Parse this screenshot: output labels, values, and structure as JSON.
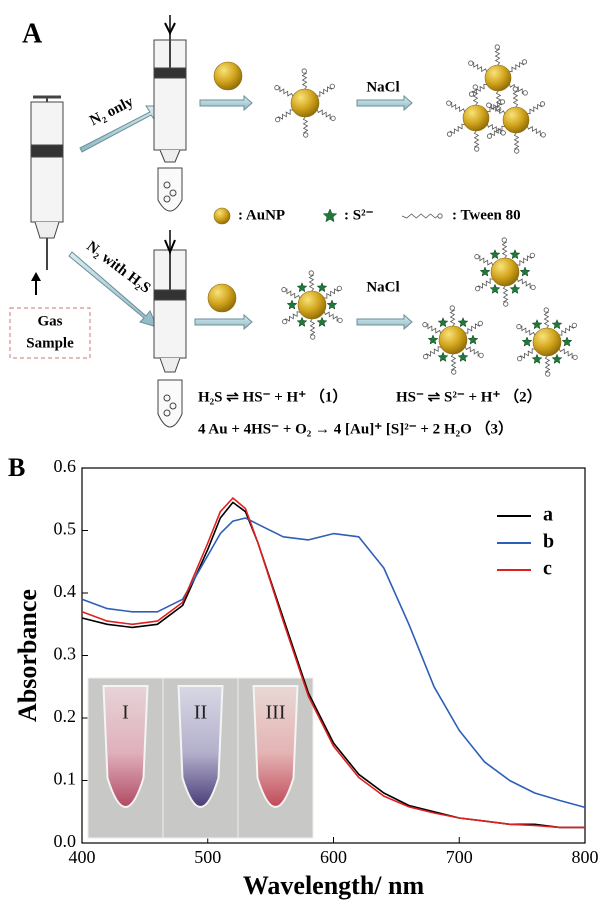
{
  "panel_a": {
    "label": "A",
    "arrow_top": "N₂ only",
    "arrow_bottom": "N₂ with H₂S",
    "nacl_top": "NaCl",
    "nacl_bottom": "NaCl",
    "legend": [
      ": AuNP",
      ": S²⁻",
      ": Tween 80"
    ],
    "gas_sample": [
      "Gas",
      "Sample"
    ],
    "equations": [
      "H₂S ⇌ HS⁻ + H⁺ （1）",
      "HS⁻ ⇌ S²⁻ + H⁺ （2）",
      "4 Au + 4HS⁻ + O₂ → 4 [Au]⁺ [S]²⁻ + 2 H₂O （3）"
    ]
  },
  "chart_data": {
    "type": "line",
    "panel_label": "B",
    "xlabel": "Wavelength/ nm",
    "ylabel": "Absorbance",
    "x": [
      400,
      420,
      440,
      460,
      480,
      500,
      510,
      520,
      530,
      540,
      560,
      580,
      600,
      620,
      640,
      660,
      680,
      700,
      720,
      740,
      760,
      780,
      800
    ],
    "series": [
      {
        "name": "a",
        "color": "#000000",
        "values": [
          0.36,
          0.35,
          0.345,
          0.35,
          0.38,
          0.47,
          0.52,
          0.545,
          0.53,
          0.48,
          0.36,
          0.24,
          0.16,
          0.11,
          0.08,
          0.06,
          0.05,
          0.04,
          0.035,
          0.03,
          0.03,
          0.025,
          0.025
        ]
      },
      {
        "name": "b",
        "color": "#2d5fb8",
        "values": [
          0.39,
          0.375,
          0.37,
          0.37,
          0.39,
          0.46,
          0.495,
          0.515,
          0.52,
          0.51,
          0.49,
          0.485,
          0.495,
          0.49,
          0.44,
          0.35,
          0.25,
          0.18,
          0.13,
          0.1,
          0.08,
          0.068,
          0.057
        ]
      },
      {
        "name": "c",
        "color": "#e02020",
        "values": [
          0.37,
          0.355,
          0.35,
          0.355,
          0.385,
          0.48,
          0.53,
          0.552,
          0.535,
          0.48,
          0.355,
          0.235,
          0.155,
          0.105,
          0.075,
          0.058,
          0.048,
          0.04,
          0.035,
          0.03,
          0.028,
          0.025,
          0.025
        ]
      }
    ],
    "xlim": [
      400,
      800
    ],
    "xticks": [
      400,
      500,
      600,
      700,
      800
    ],
    "ylim": [
      0,
      0.6
    ],
    "yticks": [
      {
        "value": 0,
        "label": "0.0"
      },
      0.1,
      0.2,
      0.3,
      0.4,
      0.5,
      0.6
    ],
    "legend_position": "upper right",
    "inset_labels": [
      "I",
      "II",
      "III"
    ]
  }
}
